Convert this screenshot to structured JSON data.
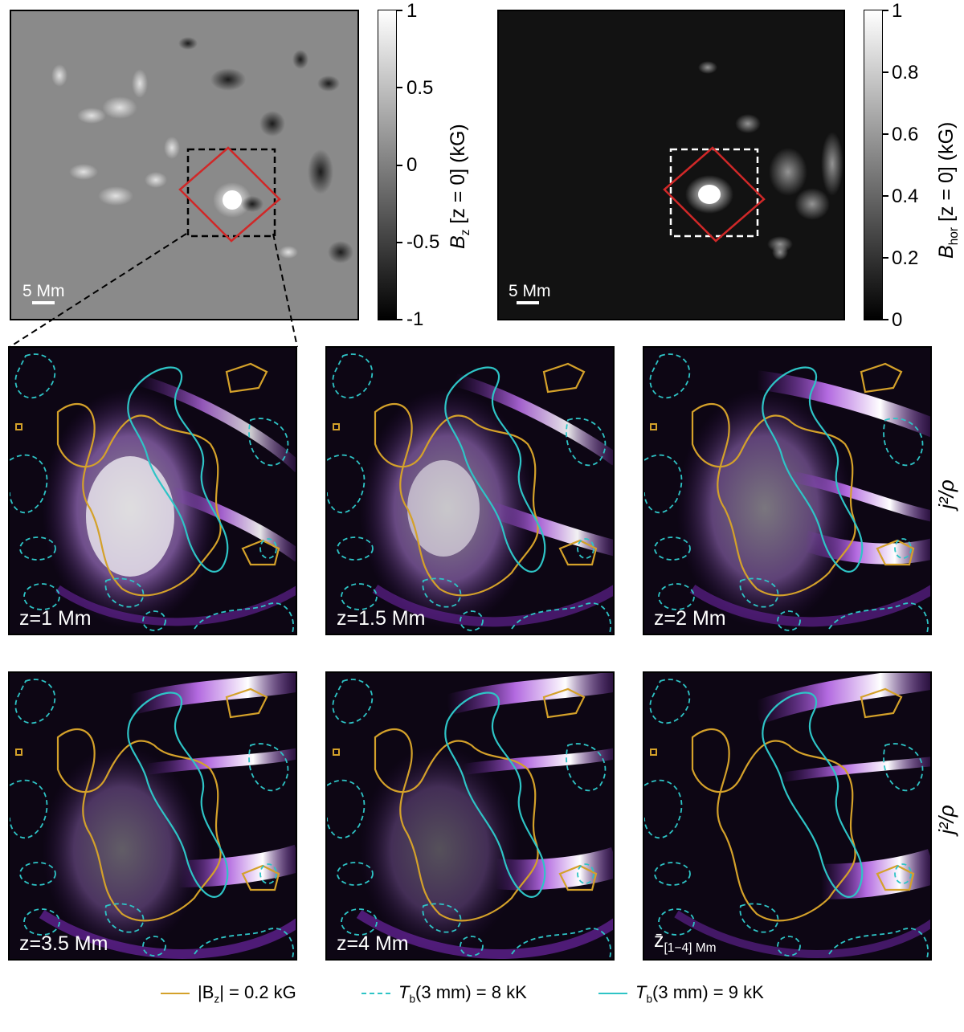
{
  "top_left": {
    "scale_label": "5 Mm",
    "colorbar": {
      "ticks": [
        "1",
        "0.5",
        "0",
        "-0.5",
        "-1"
      ],
      "label_main": "B",
      "label_sub": "z",
      "label_rest": " [z = 0] (kG)"
    }
  },
  "top_right": {
    "scale_label": "5 Mm",
    "colorbar": {
      "ticks": [
        "1",
        "0.8",
        "0.6",
        "0.4",
        "0.2",
        "0"
      ],
      "label_main": "B",
      "label_sub": "hor",
      "label_rest": " [z = 0] (kG)"
    }
  },
  "panels": [
    {
      "label": "z=1 Mm"
    },
    {
      "label": "z=1.5 Mm"
    },
    {
      "label": "z=2 Mm"
    },
    {
      "label": "z=3.5 Mm"
    },
    {
      "label": "z=4 Mm"
    },
    {
      "label_main": "z̄",
      "label_sub": "[1−4] Mm"
    }
  ],
  "side_label": "j²/ρ",
  "legend": [
    {
      "text": "|B",
      "sub": "z",
      "rest": "| = 0.2 kG",
      "color": "#d4a12a",
      "style": "solid"
    },
    {
      "text": "T",
      "sub": "b",
      "rest": "(3 mm) = 8 kK",
      "color": "#2ec4c6",
      "style": "dashed"
    },
    {
      "text": "T",
      "sub": "b",
      "rest": "(3 mm) = 9 kK",
      "color": "#2ec4c6",
      "style": "solid"
    }
  ],
  "colors": {
    "contour_bz": "#d4a12a",
    "contour_tb": "#2ec4c6",
    "roi_box": "#d02828",
    "cmap_low": "#0d0614",
    "cmap_mid": "#7a2ab8",
    "cmap_high": "#ffffff"
  }
}
